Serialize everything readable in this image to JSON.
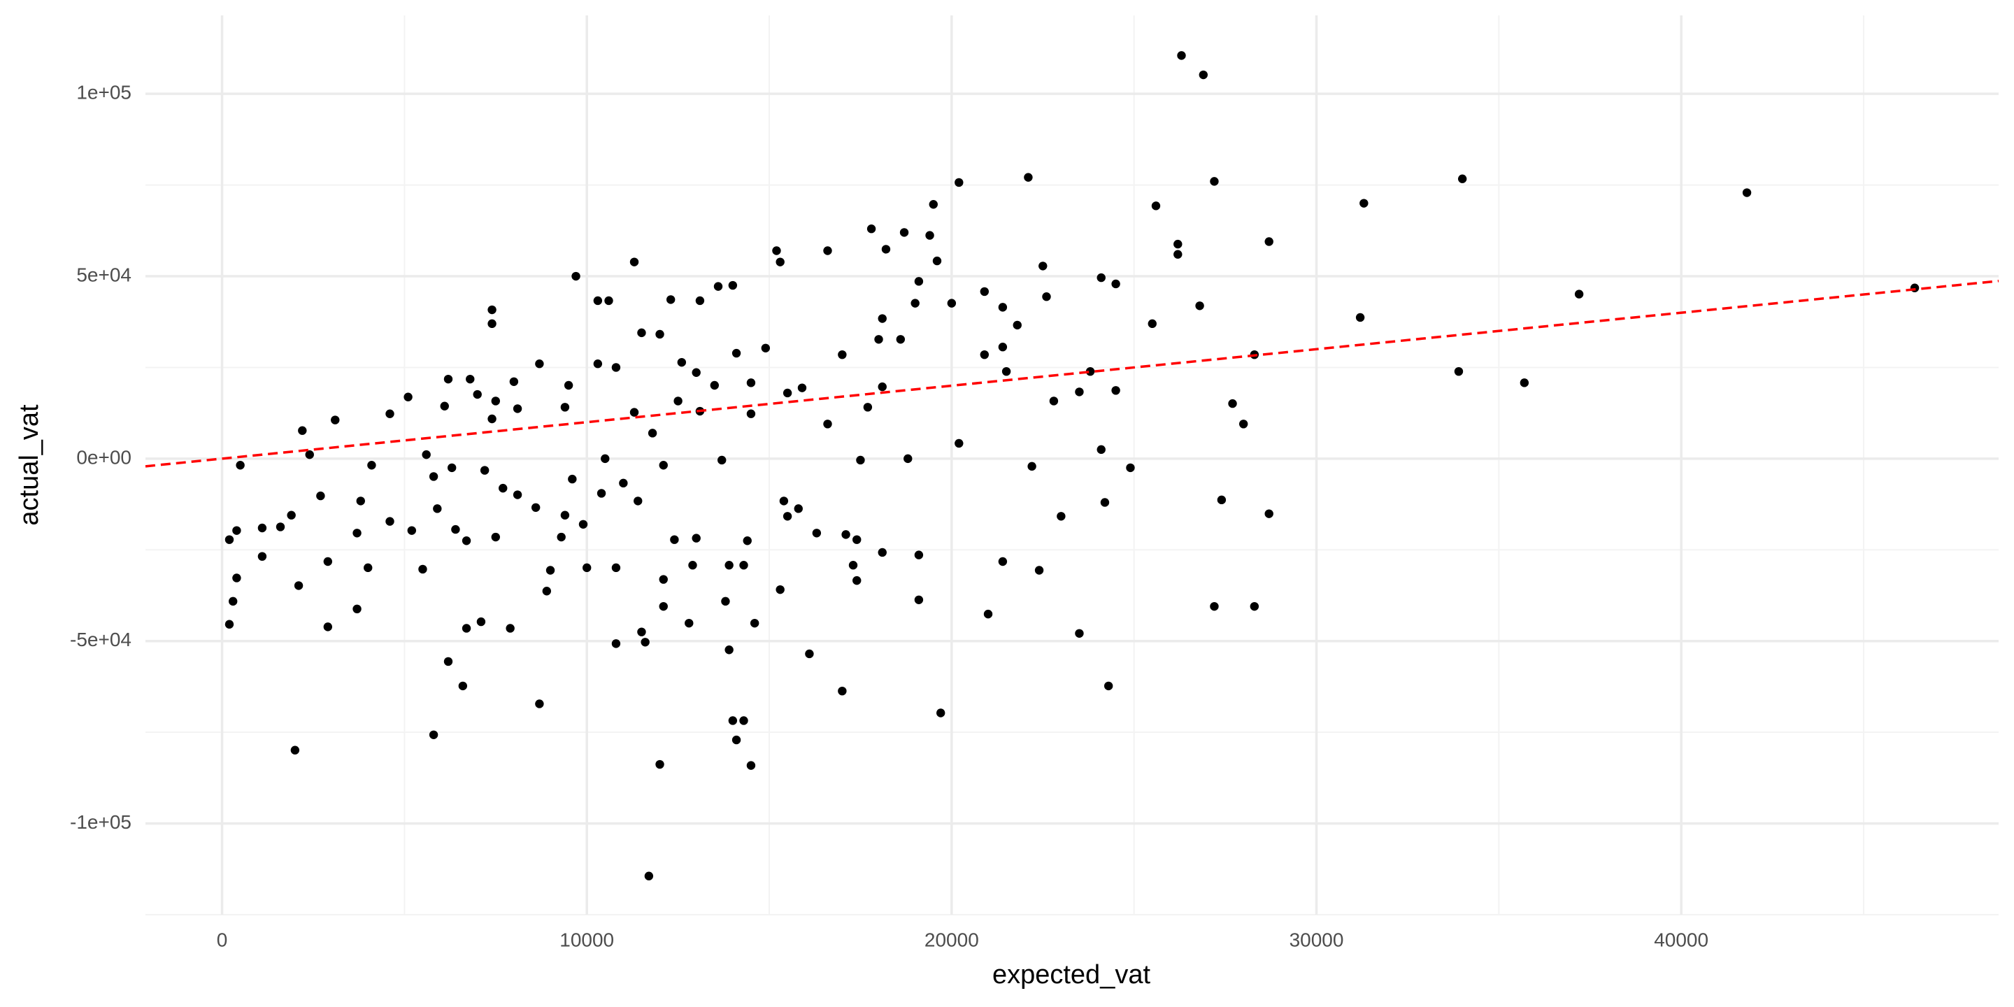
{
  "chart_data": {
    "type": "scatter",
    "x_label": "expected_vat",
    "y_label": "actual_vat",
    "color": "#000000",
    "grid": true,
    "xlim": [
      -2100,
      48700
    ],
    "ylim": [
      -125000,
      121500
    ],
    "xticks": [
      0,
      10000,
      20000,
      30000,
      40000
    ],
    "yticks": [
      {
        "value": -100000,
        "label": "-1e+05"
      },
      {
        "value": -50000,
        "label": "-5e+04"
      },
      {
        "value": 0,
        "label": "0e+00"
      },
      {
        "value": 50000,
        "label": "5e+04"
      },
      {
        "value": 100000,
        "label": "1e+05"
      }
    ],
    "reference_line": {
      "intercept": 0,
      "slope": 1,
      "color": "#ff0000",
      "linestyle": "dashed"
    },
    "x": [
      26300,
      26900,
      22100,
      27200,
      34000,
      41800,
      31300,
      20200,
      19500,
      25600,
      17800,
      18700,
      19400,
      18200,
      16600,
      15200,
      15300,
      19600,
      9700,
      11300,
      13600,
      14000,
      19100,
      19000,
      20000,
      20900,
      21400,
      21800,
      22500,
      22600,
      24100,
      24500,
      28700,
      26200,
      26200,
      25500,
      26800,
      31200,
      37200,
      46400,
      7400,
      7400,
      10300,
      10600,
      11500,
      12000,
      12300,
      13100,
      14900,
      14100,
      17000,
      18100,
      18000,
      18600,
      18100,
      20900,
      21400,
      21500,
      22800,
      23500,
      23800,
      24500,
      28300,
      27700,
      28000,
      33900,
      35700,
      5100,
      3100,
      2200,
      2400,
      4600,
      6100,
      6200,
      7000,
      7500,
      7400,
      6800,
      8000,
      8100,
      8700,
      9500,
      9400,
      10300,
      10800,
      11300,
      11800,
      12500,
      13100,
      13500,
      12600,
      13000,
      14500,
      14500,
      15500,
      15900,
      16600,
      17500,
      18800,
      20200,
      17700,
      10500,
      13700,
      5600,
      5800,
      6300,
      7200,
      7700,
      8100,
      8600,
      200,
      200,
      300,
      400,
      400,
      500,
      1100,
      1600,
      1100,
      2100,
      1900,
      2700,
      2900,
      2900,
      3700,
      3700,
      4000,
      4600,
      5200,
      5500,
      5900,
      6200,
      5800,
      6700,
      7100,
      7900,
      8700,
      8900,
      9000,
      9400,
      10000,
      10800,
      10800,
      11500,
      11600,
      12100,
      12100,
      12800,
      12900,
      13800,
      13900,
      13900,
      14000,
      14100,
      14300,
      14500,
      14600,
      14300,
      15500,
      15300,
      16100,
      17000,
      17100,
      17400,
      17400,
      17300,
      18100,
      19100,
      19100,
      19700,
      21000,
      21400,
      23000,
      22200,
      22400,
      23500,
      24100,
      24200,
      24300,
      24900,
      27200,
      27400,
      28300,
      28700,
      2000,
      6600,
      12000,
      11700,
      10400,
      11400,
      12400,
      13000,
      14400,
      15800,
      16300,
      6400,
      6700,
      7500,
      9600,
      11000,
      12100,
      15400,
      9300,
      9900,
      3800,
      4100
    ],
    "y": [
      110500,
      105200,
      77100,
      76000,
      76700,
      72900,
      70000,
      75700,
      69700,
      69300,
      63000,
      62000,
      61200,
      57400,
      57000,
      57000,
      53900,
      54200,
      50000,
      53900,
      47200,
      47500,
      48600,
      42600,
      42600,
      45800,
      41500,
      36600,
      52800,
      44400,
      49600,
      47900,
      59500,
      58800,
      56000,
      37000,
      41900,
      38700,
      45100,
      46800,
      40800,
      37000,
      43300,
      43300,
      34500,
      34100,
      43600,
      43300,
      30300,
      28900,
      28500,
      38400,
      32700,
      32700,
      19700,
      28500,
      30600,
      23900,
      15800,
      18300,
      23900,
      18700,
      28500,
      15100,
      9500,
      23900,
      20800,
      16900,
      10600,
      7700,
      1100,
      12300,
      14400,
      21800,
      17600,
      15800,
      10900,
      21800,
      21100,
      13700,
      26000,
      20100,
      14100,
      26000,
      25000,
      12700,
      7000,
      15800,
      13000,
      20100,
      26400,
      23600,
      12300,
      20800,
      18000,
      19400,
      9500,
      -400,
      0,
      4200,
      14100,
      0,
      -400,
      1100,
      -4900,
      -2500,
      -3200,
      -8100,
      -9900,
      -13400,
      -45400,
      -22200,
      -39100,
      -32700,
      -19700,
      -1800,
      -19000,
      -18700,
      -26800,
      -34800,
      -15500,
      -10200,
      -28200,
      -46100,
      -41200,
      -20400,
      -29900,
      -17200,
      -19700,
      -30300,
      -13700,
      -55600,
      -75700,
      -46500,
      -44700,
      -46500,
      -67200,
      -36300,
      -30600,
      -15500,
      -29900,
      -50700,
      -29900,
      -47500,
      -50300,
      -33100,
      -40500,
      -45100,
      -29200,
      -39100,
      -29200,
      -52400,
      -71800,
      -77100,
      -71800,
      -84100,
      -45100,
      -29200,
      -15800,
      -35900,
      -53500,
      -63700,
      -20800,
      -22200,
      -33400,
      -29200,
      -25700,
      -26400,
      -38700,
      -69700,
      -42600,
      -28200,
      -15800,
      -2100,
      -30600,
      -47900,
      2500,
      -12000,
      -62300,
      -2500,
      -40500,
      -11300,
      -40500,
      -15100,
      -79900,
      -62300,
      -83800,
      -114400,
      -9500,
      -11600,
      -22200,
      -21800,
      -22500,
      -13700,
      -20400,
      -19400,
      -22500,
      -21500,
      -5600,
      -6700,
      -1800,
      -11600,
      -21500,
      -18000,
      -11600,
      -1800
    ]
  }
}
